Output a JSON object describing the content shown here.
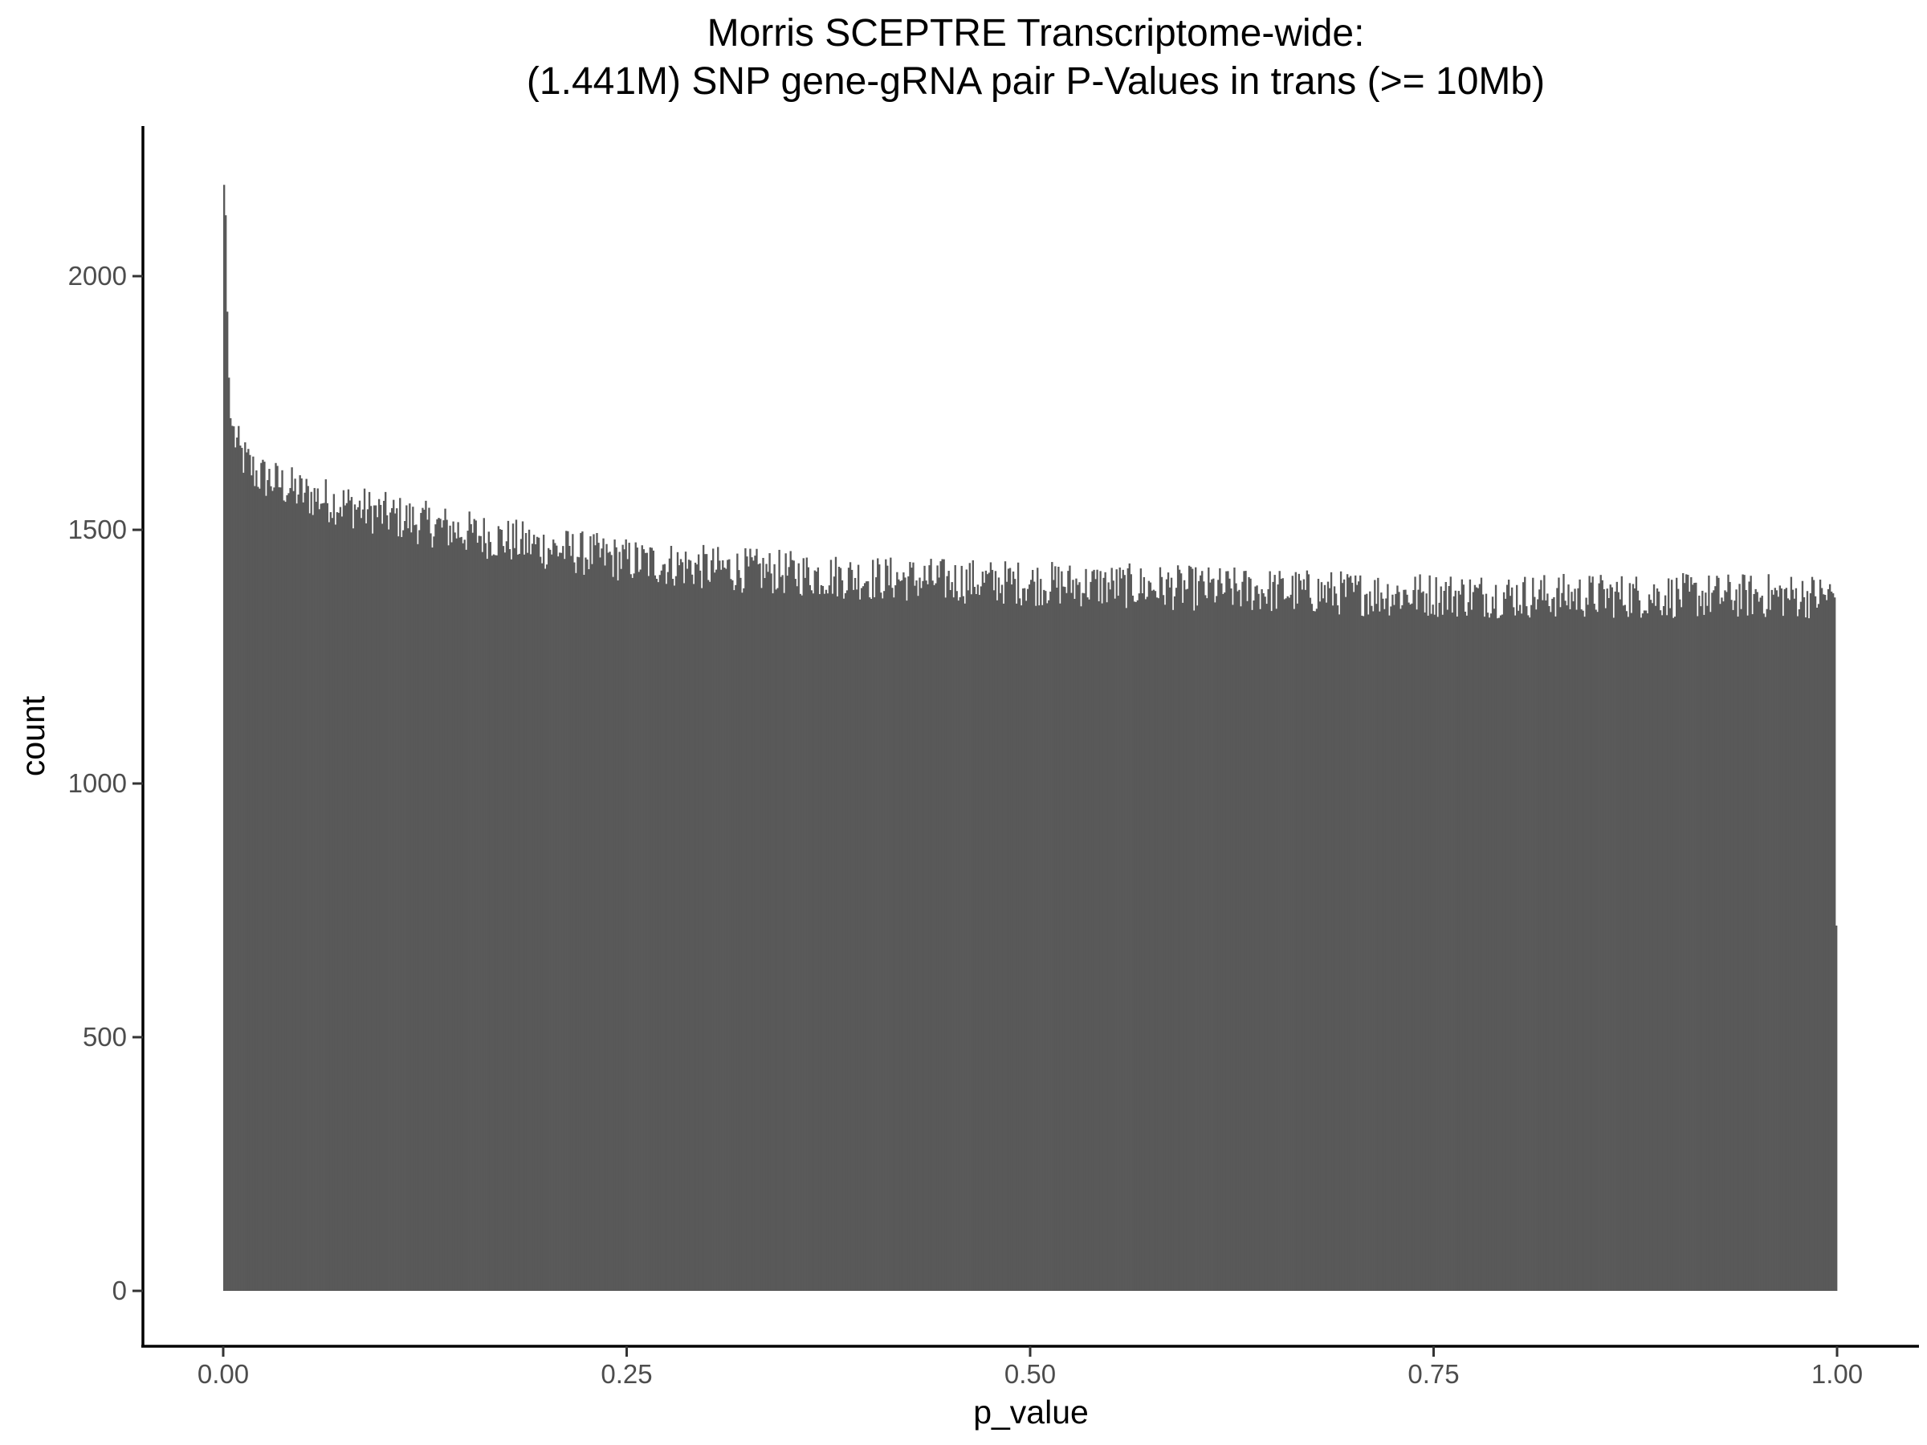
{
  "chart_data": {
    "type": "histogram",
    "title": "Morris SCEPTRE Transcriptome-wide:",
    "subtitle": "(1.441M) SNP gene-gRNA pair P-Values in trans (>= 10Mb)",
    "xlabel": "p_value",
    "ylabel": "count",
    "xlim": [
      -0.05,
      1.05
    ],
    "ylim": [
      -110,
      2300
    ],
    "x_ticks": [
      {
        "value": 0.0,
        "label": "0.00"
      },
      {
        "value": 0.25,
        "label": "0.25"
      },
      {
        "value": 0.5,
        "label": "0.50"
      },
      {
        "value": 0.75,
        "label": "0.75"
      },
      {
        "value": 1.0,
        "label": "1.00"
      }
    ],
    "y_ticks": [
      {
        "value": 0,
        "label": "0"
      },
      {
        "value": 500,
        "label": "500"
      },
      {
        "value": 1000,
        "label": "1000"
      },
      {
        "value": 1500,
        "label": "1500"
      },
      {
        "value": 2000,
        "label": "2000"
      }
    ],
    "bar_color": "#595959",
    "bin_width": 0.001,
    "bins_range": [
      0.0,
      1.0
    ],
    "profile": {
      "x": [
        0.0,
        0.001,
        0.002,
        0.003,
        0.004,
        0.006,
        0.01,
        0.02,
        0.05,
        0.1,
        0.15,
        0.2,
        0.25,
        0.3,
        0.4,
        0.5,
        0.6,
        0.7,
        0.8,
        0.9,
        0.998,
        0.999
      ],
      "count": [
        2180,
        2120,
        1930,
        1800,
        1720,
        1690,
        1650,
        1610,
        1570,
        1530,
        1495,
        1465,
        1440,
        1425,
        1405,
        1395,
        1385,
        1375,
        1370,
        1370,
        1370,
        720
      ]
    },
    "noise_amplitude": 45,
    "grid": false,
    "legend": "none"
  }
}
